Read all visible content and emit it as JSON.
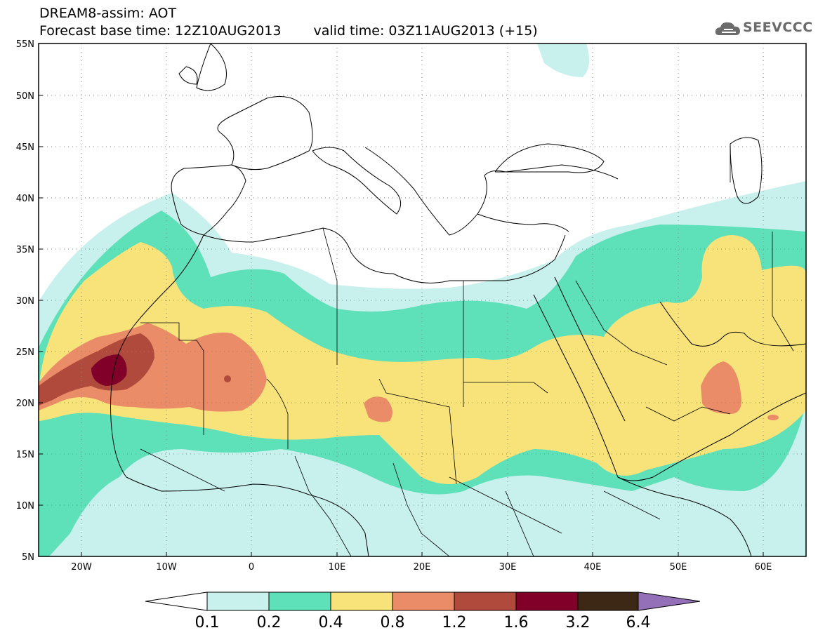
{
  "header": {
    "line1": "DREAM8-assim: AOT",
    "base_time": "Forecast base time: 12Z10AUG2013",
    "valid_time": "valid time: 03Z11AUG2013 (+15)"
  },
  "logo": {
    "text": "SEEVCCC",
    "icon": "cloud-icon"
  },
  "axes": {
    "lat_labels": [
      "55N",
      "50N",
      "45N",
      "40N",
      "35N",
      "30N",
      "25N",
      "20N",
      "15N",
      "10N",
      "5N"
    ],
    "lon_labels": [
      "20W",
      "10W",
      "0",
      "10E",
      "20E",
      "30E",
      "40E",
      "50E",
      "60E"
    ]
  },
  "colorbar": {
    "labels": [
      "0.1",
      "0.2",
      "0.4",
      "0.8",
      "1.2",
      "1.6",
      "3.2",
      "6.4"
    ],
    "colors": [
      "#ffffff",
      "#c8f0ec",
      "#5ee0b9",
      "#f8e37a",
      "#ea8c68",
      "#b04a3c",
      "#80002a",
      "#3c2814",
      "#9370b8"
    ]
  }
}
